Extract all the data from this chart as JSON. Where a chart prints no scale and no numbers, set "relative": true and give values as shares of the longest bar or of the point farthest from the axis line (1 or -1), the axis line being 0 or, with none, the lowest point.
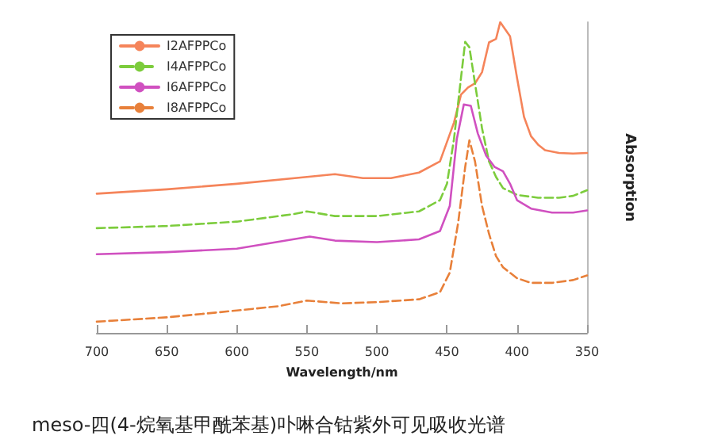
{
  "chart_data": {
    "type": "line",
    "relative": true,
    "xlabel": "Wavelength/nm",
    "ylabel": "Absorption",
    "xlim": [
      700,
      350
    ],
    "xticks": [
      700,
      650,
      600,
      550,
      500,
      450,
      400,
      350
    ],
    "legend": "top left",
    "grid": false,
    "marker": "none",
    "annotations": [
      "meso-四(4-烷氧基甲酰苯基)卟啉合钴紫外可见吸收光谱"
    ],
    "series": [
      {
        "name": "I2AFPPCo",
        "color": "#f5845a",
        "line_style": "solid",
        "x": [
          700,
          650,
          600,
          550,
          530,
          510,
          490,
          470,
          455,
          445,
          440,
          435,
          430,
          425,
          420,
          415,
          412,
          405,
          400,
          395,
          390,
          385,
          380,
          370,
          360,
          350
        ],
        "values": [
          0.448,
          0.462,
          0.48,
          0.502,
          0.511,
          0.498,
          0.498,
          0.516,
          0.552,
          0.677,
          0.767,
          0.79,
          0.803,
          0.839,
          0.935,
          0.946,
          1.0,
          0.955,
          0.821,
          0.695,
          0.633,
          0.606,
          0.588,
          0.579,
          0.577,
          0.579
        ]
      },
      {
        "name": "I4AFPPCo",
        "color": "#7ccc3c",
        "line_style": "dashed",
        "x": [
          700,
          650,
          600,
          560,
          550,
          530,
          500,
          470,
          455,
          450,
          445,
          440,
          437,
          434,
          430,
          425,
          420,
          415,
          410,
          400,
          385,
          370,
          360,
          350
        ],
        "values": [
          0.337,
          0.344,
          0.358,
          0.382,
          0.391,
          0.376,
          0.376,
          0.391,
          0.427,
          0.48,
          0.624,
          0.821,
          0.937,
          0.919,
          0.803,
          0.659,
          0.552,
          0.502,
          0.466,
          0.444,
          0.435,
          0.435,
          0.441,
          0.459
        ]
      },
      {
        "name": "I6AFPPCo",
        "color": "#d050c0",
        "line_style": "solid",
        "x": [
          700,
          650,
          600,
          560,
          548,
          530,
          500,
          470,
          455,
          448,
          443,
          438,
          433,
          428,
          422,
          416,
          410,
          405,
          400,
          390,
          375,
          360,
          350
        ],
        "values": [
          0.253,
          0.26,
          0.271,
          0.301,
          0.31,
          0.297,
          0.292,
          0.301,
          0.328,
          0.409,
          0.624,
          0.735,
          0.731,
          0.642,
          0.57,
          0.534,
          0.52,
          0.48,
          0.427,
          0.4,
          0.387,
          0.387,
          0.394
        ]
      },
      {
        "name": "I8AFPPCo",
        "color": "#e8803a",
        "line_style": "dashed",
        "x": [
          700,
          650,
          600,
          570,
          550,
          525,
          500,
          470,
          455,
          448,
          442,
          437,
          434,
          430,
          425,
          420,
          415,
          410,
          400,
          390,
          375,
          360,
          350
        ],
        "values": [
          0.036,
          0.05,
          0.072,
          0.086,
          0.104,
          0.095,
          0.099,
          0.108,
          0.131,
          0.194,
          0.355,
          0.534,
          0.62,
          0.552,
          0.409,
          0.319,
          0.247,
          0.211,
          0.176,
          0.161,
          0.161,
          0.17,
          0.185
        ]
      }
    ]
  }
}
